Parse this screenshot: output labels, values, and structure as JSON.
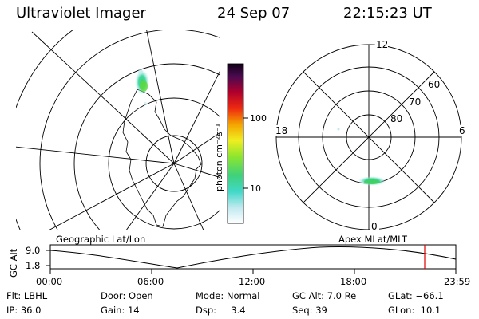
{
  "header": {
    "title": "Ultraviolet Imager",
    "date": "24 Sep 07",
    "time": "22:15:23 UT"
  },
  "colorbar": {
    "unit_label": "photon cm⁻²s⁻¹",
    "ticks": [
      "100",
      "10"
    ]
  },
  "polar": {
    "mlt_labels": {
      "top": "12",
      "left": "18",
      "right": "6",
      "bottom": "0"
    },
    "lat_labels": [
      "60",
      "70",
      "80"
    ]
  },
  "track": {
    "left_title": "Geographic Lat/Lon",
    "right_title": "Apex MLat/MLT",
    "ylabel": "GC Alt",
    "y_top": "9.0",
    "y_bottom": "1.8",
    "time_ticks": [
      "00:00",
      "06:00",
      "12:00",
      "18:00",
      "23:59"
    ],
    "marker_color": "#e00000"
  },
  "info": {
    "filter": "Flt: LBHL",
    "ip": "IP: 36.0",
    "door": "Door: Open",
    "gain": "Gain: 14",
    "mode": "Mode: Normal",
    "dsp": "Dsp:     3.4",
    "gc_alt": "GC Alt: 7.0 Re",
    "seq": "Seq: 39",
    "glat": "GLat: −66.1",
    "glon": "GLon:  10.1"
  }
}
